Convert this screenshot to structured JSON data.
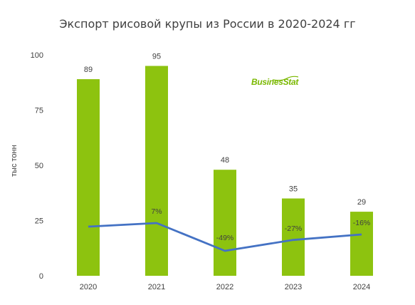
{
  "chart_data": {
    "type": "bar",
    "title": "Экспорт рисовой крупы из России в 2020-2024 гг",
    "ylabel": "тыс тонн",
    "categories": [
      "2020",
      "2021",
      "2022",
      "2023",
      "2024"
    ],
    "values": [
      89,
      95,
      48,
      35,
      29
    ],
    "value_labels": [
      "89",
      "95",
      "48",
      "35",
      "29"
    ],
    "ylim": [
      0,
      100
    ],
    "yticks": [
      0,
      25,
      50,
      75,
      100
    ],
    "grid": false,
    "line_series": {
      "values": [
        null,
        7,
        -49,
        -27,
        -16
      ],
      "labels": [
        "",
        "7%",
        "-49%",
        "-27%",
        "-16%"
      ]
    },
    "bar_color": "#8dc30f",
    "line_color": "#4472c4"
  },
  "logo": {
    "text": "BusinesStat"
  }
}
